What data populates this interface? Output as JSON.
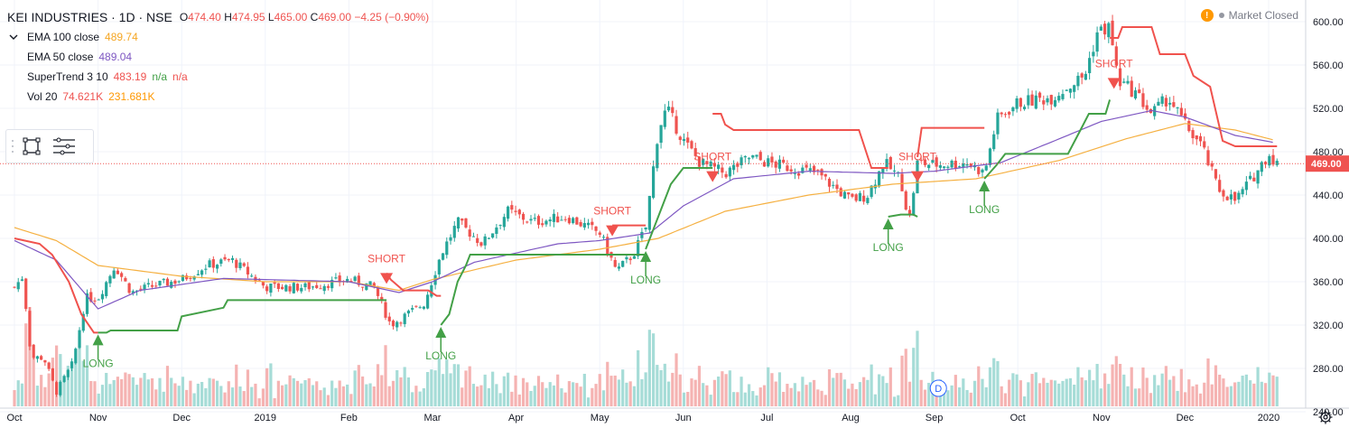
{
  "header": {
    "symbol": "KEI INDUSTRIES · 1D · NSE",
    "open_label": "O",
    "open": "474.40",
    "high_label": "H",
    "high": "474.95",
    "low_label": "L",
    "low": "465.00",
    "close_label": "C",
    "close": "469.00",
    "change": "−4.25 (−0.90%)"
  },
  "indicators": [
    {
      "name": "EMA 100 close",
      "values": [
        "489.74"
      ],
      "colors": [
        "#f5a623"
      ]
    },
    {
      "name": "EMA 50 close",
      "values": [
        "489.04"
      ],
      "colors": [
        "#7e57c2"
      ]
    },
    {
      "name": "SuperTrend 3 10",
      "values": [
        "483.19",
        "n/a",
        "n/a"
      ],
      "colors": [
        "#ef5350",
        "#43a047",
        "#ef5350"
      ]
    },
    {
      "name": "Vol 20",
      "values": [
        "74.621K",
        "231.681K"
      ],
      "colors": [
        "#ef5350",
        "#ff9800"
      ]
    }
  ],
  "market_status": "Market Closed",
  "price_label": "469.00",
  "colors": {
    "up": "#26a69a",
    "down": "#ef5350",
    "st_up": "#43a047",
    "st_down": "#f0524d",
    "ema50": "#7e57c2",
    "ema100": "#f5b041",
    "grid": "#f0f3fa"
  },
  "chart_data": {
    "type": "candlestick",
    "title": "KEI INDUSTRIES · 1D · NSE",
    "y_axis": {
      "min": 225,
      "max": 620,
      "ticks": [
        240,
        280,
        320,
        360,
        400,
        440,
        480,
        520,
        560,
        600
      ]
    },
    "x_labels": [
      {
        "label": "Oct",
        "month": 0
      },
      {
        "label": "Nov",
        "month": 1
      },
      {
        "label": "Dec",
        "month": 2
      },
      {
        "label": "2019",
        "month": 3
      },
      {
        "label": "Feb",
        "month": 4
      },
      {
        "label": "Mar",
        "month": 5
      },
      {
        "label": "Apr",
        "month": 6
      },
      {
        "label": "May",
        "month": 7
      },
      {
        "label": "Jun",
        "month": 8
      },
      {
        "label": "Jul",
        "month": 9
      },
      {
        "label": "Aug",
        "month": 10
      },
      {
        "label": "Sep",
        "month": 11
      },
      {
        "label": "Oct",
        "month": 12
      },
      {
        "label": "Nov",
        "month": 13
      },
      {
        "label": "Dec",
        "month": 14
      },
      {
        "label": "2020",
        "month": 15
      }
    ],
    "close_anchors": [
      [
        0,
        355
      ],
      [
        0.1,
        365
      ],
      [
        0.2,
        290
      ],
      [
        0.35,
        290
      ],
      [
        0.5,
        258
      ],
      [
        0.7,
        285
      ],
      [
        0.85,
        345
      ],
      [
        1.0,
        345
      ],
      [
        1.2,
        375
      ],
      [
        1.4,
        350
      ],
      [
        1.6,
        355
      ],
      [
        2.0,
        362
      ],
      [
        2.3,
        375
      ],
      [
        2.6,
        380
      ],
      [
        3.0,
        355
      ],
      [
        3.5,
        355
      ],
      [
        4.0,
        362
      ],
      [
        4.3,
        355
      ],
      [
        4.5,
        320
      ],
      [
        4.7,
        330
      ],
      [
        4.9,
        340
      ],
      [
        5.1,
        385
      ],
      [
        5.3,
        415
      ],
      [
        5.6,
        395
      ],
      [
        5.9,
        425
      ],
      [
        6.2,
        415
      ],
      [
        6.6,
        420
      ],
      [
        7.0,
        405
      ],
      [
        7.2,
        370
      ],
      [
        7.4,
        385
      ],
      [
        7.55,
        410
      ],
      [
        7.7,
        500
      ],
      [
        7.8,
        520
      ],
      [
        8.0,
        490
      ],
      [
        8.2,
        470
      ],
      [
        8.5,
        460
      ],
      [
        8.8,
        475
      ],
      [
        9.0,
        470
      ],
      [
        9.3,
        465
      ],
      [
        9.6,
        460
      ],
      [
        10.0,
        435
      ],
      [
        10.2,
        440
      ],
      [
        10.4,
        470
      ],
      [
        10.6,
        455
      ],
      [
        10.7,
        415
      ],
      [
        10.8,
        470
      ],
      [
        11.0,
        468
      ],
      [
        11.4,
        470
      ],
      [
        11.6,
        460
      ],
      [
        11.75,
        510
      ],
      [
        12.0,
        525
      ],
      [
        12.4,
        530
      ],
      [
        12.8,
        550
      ],
      [
        12.95,
        590
      ],
      [
        13.1,
        595
      ],
      [
        13.2,
        545
      ],
      [
        13.4,
        535
      ],
      [
        13.6,
        515
      ],
      [
        13.8,
        530
      ],
      [
        14.0,
        505
      ],
      [
        14.2,
        485
      ],
      [
        14.4,
        445
      ],
      [
        14.6,
        435
      ],
      [
        14.8,
        455
      ],
      [
        15.0,
        478
      ],
      [
        15.1,
        469
      ]
    ],
    "ema50_anchors": [
      [
        0,
        398
      ],
      [
        0.5,
        380
      ],
      [
        1.0,
        335
      ],
      [
        1.5,
        352
      ],
      [
        2.5,
        363
      ],
      [
        3.0,
        362
      ],
      [
        4.0,
        360
      ],
      [
        4.6,
        350
      ],
      [
        5.0,
        360
      ],
      [
        5.5,
        378
      ],
      [
        6.5,
        395
      ],
      [
        7.0,
        398
      ],
      [
        7.6,
        405
      ],
      [
        8.0,
        430
      ],
      [
        8.6,
        455
      ],
      [
        9.5,
        462
      ],
      [
        10.5,
        460
      ],
      [
        11.0,
        462
      ],
      [
        11.8,
        470
      ],
      [
        12.5,
        492
      ],
      [
        13.0,
        508
      ],
      [
        13.6,
        518
      ],
      [
        14.0,
        512
      ],
      [
        14.6,
        495
      ],
      [
        15.1,
        488
      ]
    ],
    "ema100_anchors": [
      [
        0,
        410
      ],
      [
        0.5,
        398
      ],
      [
        1.0,
        375
      ],
      [
        2.0,
        365
      ],
      [
        3.0,
        360
      ],
      [
        4.0,
        360
      ],
      [
        4.6,
        352
      ],
      [
        5.0,
        362
      ],
      [
        6.0,
        380
      ],
      [
        7.0,
        390
      ],
      [
        7.7,
        400
      ],
      [
        8.5,
        425
      ],
      [
        9.5,
        440
      ],
      [
        10.5,
        450
      ],
      [
        11.5,
        455
      ],
      [
        12.5,
        472
      ],
      [
        13.3,
        492
      ],
      [
        14.0,
        506
      ],
      [
        14.6,
        500
      ],
      [
        15.1,
        490
      ]
    ],
    "supertrend": [
      {
        "dir": "down",
        "points": [
          [
            0,
            400
          ],
          [
            0.3,
            395
          ],
          [
            0.45,
            385
          ],
          [
            0.65,
            360
          ],
          [
            0.8,
            330
          ],
          [
            0.95,
            313
          ],
          [
            1.0,
            313
          ]
        ]
      },
      {
        "dir": "up",
        "points": [
          [
            1.0,
            313
          ],
          [
            1.1,
            313
          ],
          [
            1.15,
            315
          ],
          [
            1.95,
            315
          ],
          [
            2.0,
            328
          ],
          [
            2.5,
            336
          ],
          [
            2.55,
            343
          ],
          [
            4.45,
            343
          ]
        ]
      },
      {
        "dir": "down",
        "points": [
          [
            4.45,
            368
          ],
          [
            4.5,
            362
          ],
          [
            4.65,
            352
          ],
          [
            4.95,
            352
          ],
          [
            5.05,
            347
          ],
          [
            5.1,
            347
          ]
        ]
      },
      {
        "dir": "up",
        "points": [
          [
            5.1,
            320
          ],
          [
            5.2,
            330
          ],
          [
            5.3,
            360
          ],
          [
            5.4,
            375
          ],
          [
            5.45,
            385
          ],
          [
            7.55,
            385
          ]
        ]
      },
      {
        "dir": "down",
        "points": [
          [
            7.15,
            412
          ],
          [
            7.55,
            412
          ]
        ]
      },
      {
        "dir": "up",
        "points": [
          [
            7.55,
            390
          ],
          [
            7.7,
            420
          ],
          [
            7.85,
            450
          ],
          [
            8.0,
            465
          ],
          [
            8.35,
            465
          ]
        ]
      },
      {
        "dir": "down",
        "points": [
          [
            8.35,
            515
          ],
          [
            8.45,
            515
          ],
          [
            8.5,
            505
          ],
          [
            8.6,
            500
          ],
          [
            10.1,
            500
          ],
          [
            10.25,
            465
          ],
          [
            10.45,
            465
          ]
        ]
      },
      {
        "dir": "up",
        "points": [
          [
            10.45,
            420
          ],
          [
            10.6,
            422
          ],
          [
            10.75,
            422
          ],
          [
            10.8,
            420
          ]
        ]
      },
      {
        "dir": "down",
        "points": [
          [
            10.8,
            475
          ],
          [
            10.85,
            502
          ],
          [
            11.6,
            502
          ]
        ]
      },
      {
        "dir": "up",
        "points": [
          [
            11.6,
            455
          ],
          [
            11.75,
            468
          ],
          [
            11.85,
            478
          ],
          [
            12.6,
            478
          ],
          [
            12.75,
            500
          ],
          [
            12.85,
            515
          ],
          [
            13.05,
            515
          ],
          [
            13.1,
            528
          ]
        ]
      },
      {
        "dir": "down",
        "points": [
          [
            13.1,
            585
          ],
          [
            13.2,
            585
          ],
          [
            13.25,
            595
          ],
          [
            13.6,
            595
          ],
          [
            13.7,
            570
          ],
          [
            14.0,
            570
          ],
          [
            14.1,
            550
          ],
          [
            14.3,
            540
          ],
          [
            14.45,
            490
          ],
          [
            14.6,
            485
          ],
          [
            15.1,
            485
          ]
        ]
      }
    ],
    "signals": [
      {
        "type": "LONG",
        "month": 1.0,
        "price": 313
      },
      {
        "type": "SHORT",
        "month": 4.45,
        "price": 368
      },
      {
        "type": "LONG",
        "month": 5.1,
        "price": 320
      },
      {
        "type": "SHORT",
        "month": 7.15,
        "price": 412
      },
      {
        "type": "LONG",
        "month": 7.55,
        "price": 390
      },
      {
        "type": "SHORT",
        "month": 8.35,
        "price": 462
      },
      {
        "type": "LONG",
        "month": 10.45,
        "price": 420
      },
      {
        "type": "SHORT",
        "month": 10.8,
        "price": 462
      },
      {
        "type": "LONG",
        "month": 11.6,
        "price": 455
      },
      {
        "type": "SHORT",
        "month": 13.15,
        "price": 548
      }
    ],
    "dividend_marker": {
      "label": "D",
      "month": 11.05
    },
    "last_price": 469.0,
    "series": [
      {
        "name": "EMA 100 close",
        "last": 489.74
      },
      {
        "name": "EMA 50 close",
        "last": 489.04
      },
      {
        "name": "SuperTrend 3 10",
        "last": 483.19
      },
      {
        "name": "Vol 20",
        "last": 74621
      }
    ]
  }
}
